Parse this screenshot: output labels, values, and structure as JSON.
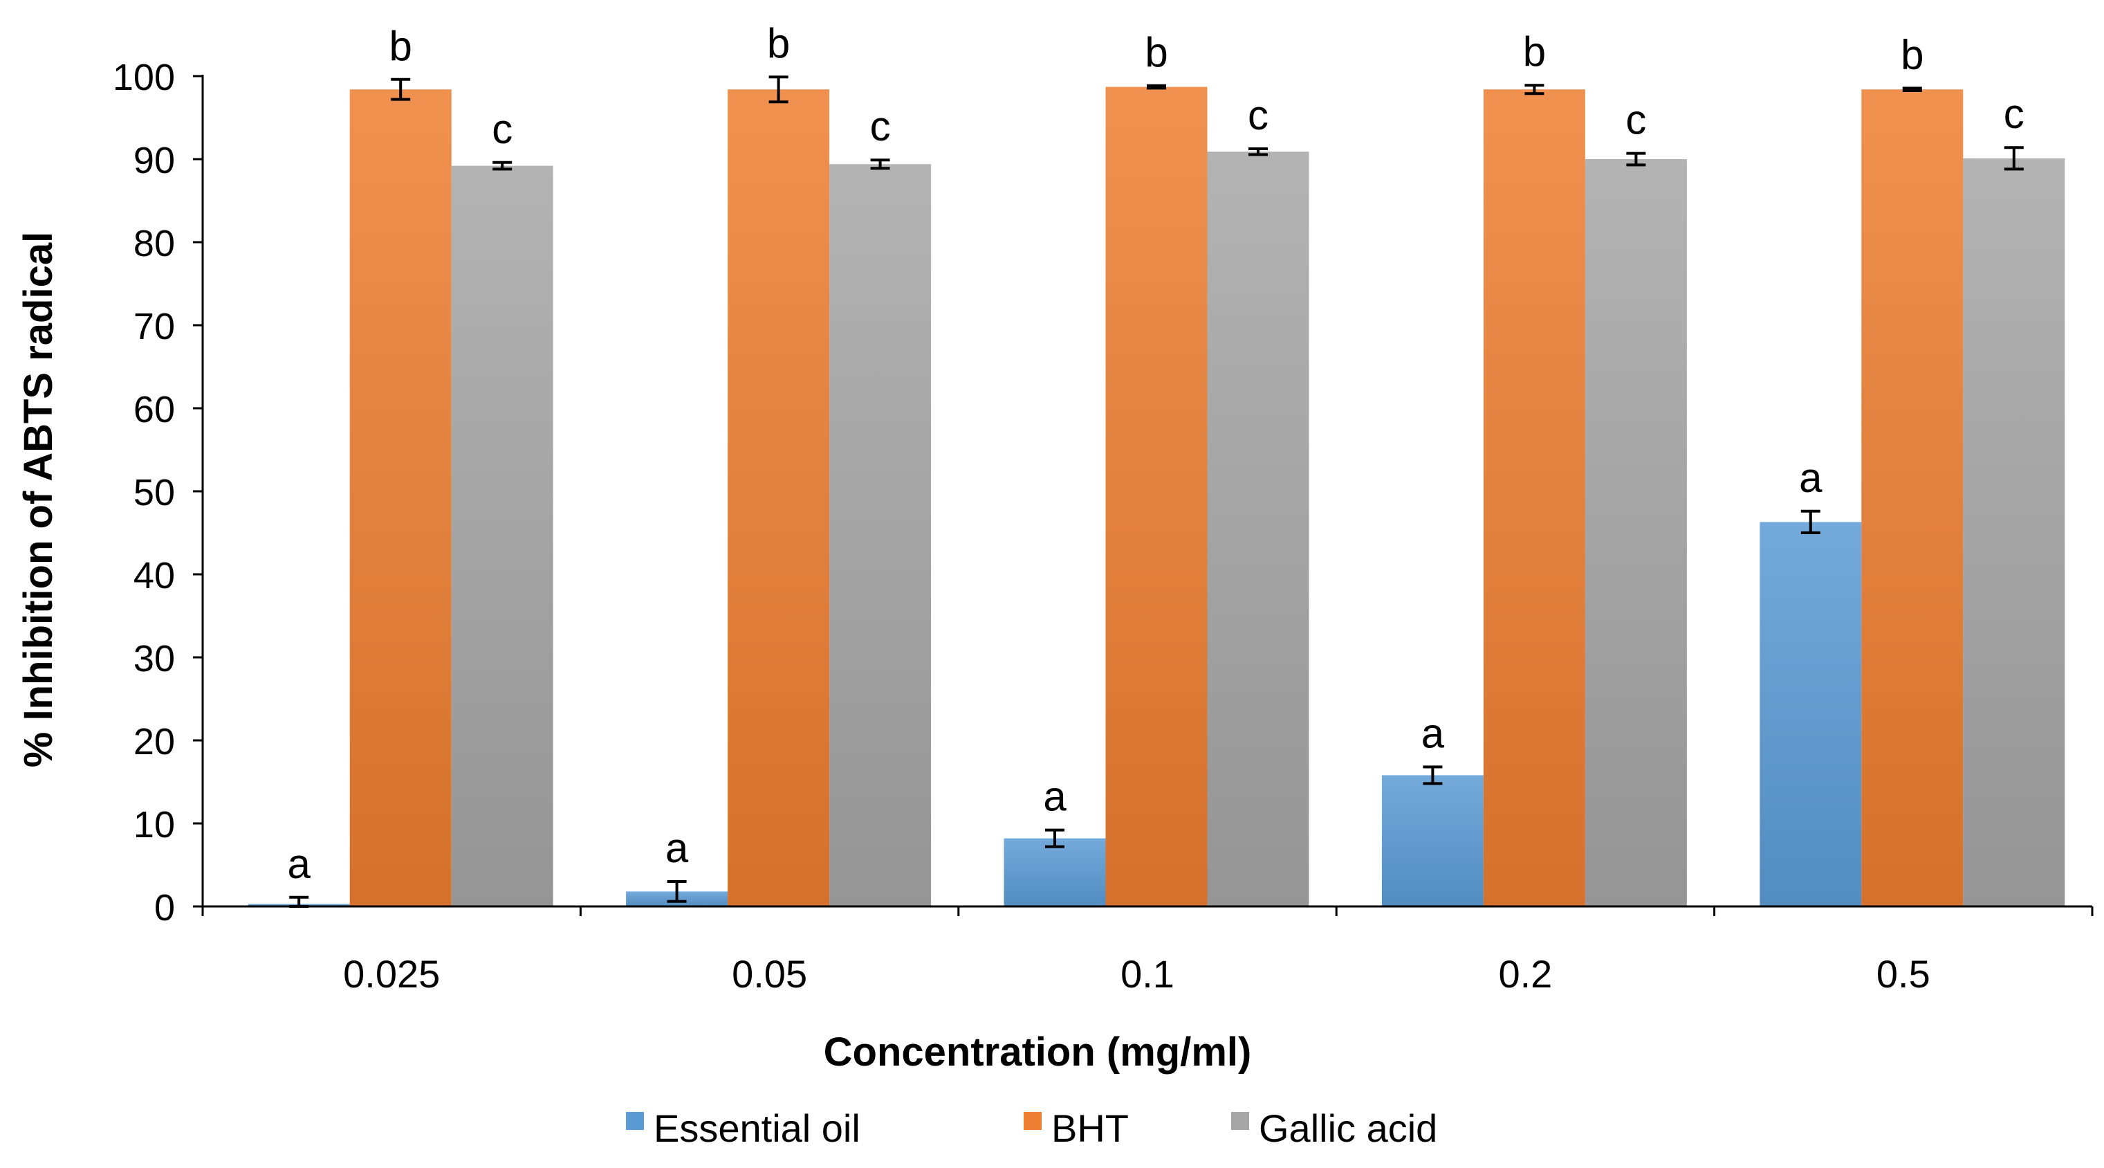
{
  "chart_data": {
    "type": "bar",
    "categories": [
      "0.025",
      "0.05",
      "0.1",
      "0.2",
      "0.5"
    ],
    "series": [
      {
        "name": "Essential oil",
        "color": "#5B9BD5",
        "values": [
          0.3,
          1.8,
          8.2,
          15.8,
          46.3
        ],
        "errors": [
          0.8,
          1.2,
          1.0,
          1.0,
          1.3
        ],
        "letters": [
          "a",
          "a",
          "a",
          "a",
          "a"
        ]
      },
      {
        "name": "BHT",
        "color": "#ED7D31",
        "values": [
          98.4,
          98.4,
          98.7,
          98.4,
          98.4
        ],
        "errors": [
          1.2,
          1.5,
          0.15,
          0.5,
          0.15
        ],
        "letters": [
          "b",
          "b",
          "b",
          "b",
          "b"
        ]
      },
      {
        "name": "Gallic acid",
        "color": "#A5A5A5",
        "values": [
          89.2,
          89.4,
          90.9,
          90.0,
          90.1
        ],
        "errors": [
          0.4,
          0.5,
          0.35,
          0.7,
          1.3
        ],
        "letters": [
          "c",
          "c",
          "c",
          "c",
          "c"
        ]
      }
    ],
    "title": "",
    "xlabel": "Concentration (mg/ml)",
    "ylabel": "% Inhibition of ABTS radical",
    "ylim": [
      0,
      100
    ],
    "yticks": [
      "0",
      "10",
      "20",
      "30",
      "40",
      "50",
      "60",
      "70",
      "80",
      "90",
      "100"
    ],
    "grid": false,
    "legend_position": "bottom"
  }
}
